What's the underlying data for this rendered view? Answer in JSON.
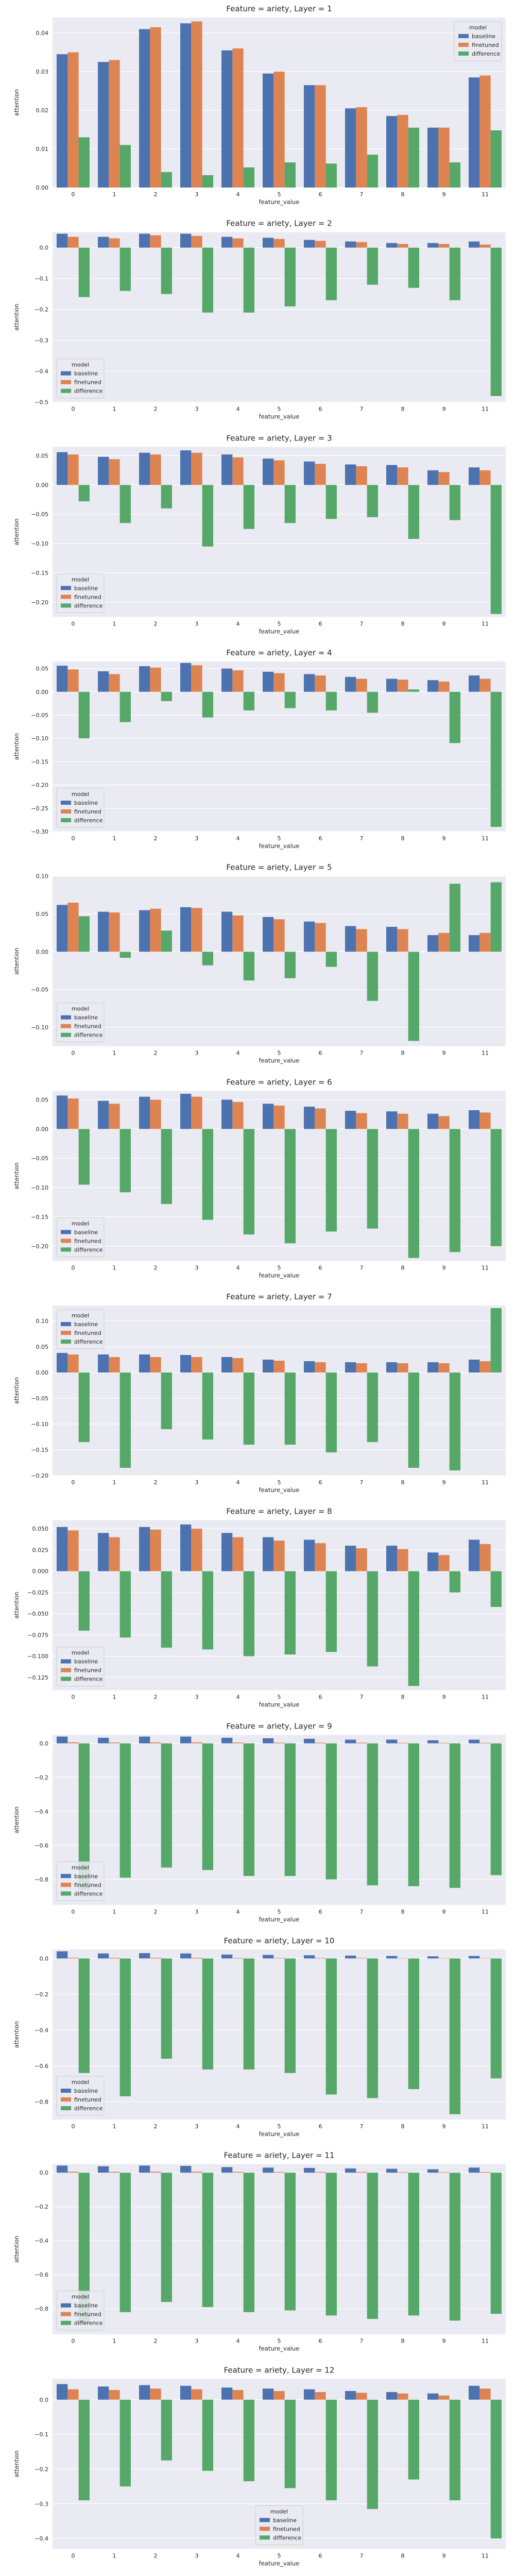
{
  "colors": {
    "baseline": "#4c72b0",
    "finetuned": "#dd8452",
    "difference": "#55a868",
    "plot_bg": "#eaeaf2",
    "grid": "#ffffff"
  },
  "chart_data": [
    {
      "type": "bar",
      "title": "Feature = ariety, Layer = 1",
      "xlabel": "feature_value",
      "ylabel": "attention",
      "categories": [
        "0",
        "1",
        "2",
        "3",
        "4",
        "5",
        "6",
        "7",
        "8",
        "9",
        "11"
      ],
      "ylim": [
        0,
        0.044
      ],
      "yticks": [
        "0.00",
        "0.01",
        "0.02",
        "0.03",
        "0.04"
      ],
      "legend": {
        "title": "model",
        "position": "top-right"
      },
      "series": [
        {
          "name": "baseline",
          "values": [
            0.0345,
            0.0325,
            0.041,
            0.0425,
            0.0355,
            0.0295,
            0.0265,
            0.0205,
            0.0185,
            0.0155,
            0.0285
          ]
        },
        {
          "name": "finetuned",
          "values": [
            0.035,
            0.033,
            0.0415,
            0.043,
            0.036,
            0.03,
            0.0265,
            0.0208,
            0.0188,
            0.0155,
            0.029
          ]
        },
        {
          "name": "difference",
          "values": [
            0.013,
            0.011,
            0.004,
            0.0032,
            0.0052,
            0.0065,
            0.0062,
            0.0085,
            0.0155,
            0.0065,
            0.0148
          ]
        }
      ]
    },
    {
      "type": "bar",
      "title": "Feature = ariety, Layer = 2",
      "xlabel": "feature_value",
      "ylabel": "attention",
      "categories": [
        "0",
        "1",
        "2",
        "3",
        "4",
        "5",
        "6",
        "7",
        "8",
        "9",
        "11"
      ],
      "ylim": [
        -0.5,
        0.05
      ],
      "yticks": [
        "−0.5",
        "−0.4",
        "−0.3",
        "−0.2",
        "−0.1",
        "0.0"
      ],
      "legend": {
        "title": "model",
        "position": "bottom-left"
      },
      "series": [
        {
          "name": "baseline",
          "values": [
            0.045,
            0.035,
            0.045,
            0.045,
            0.035,
            0.032,
            0.025,
            0.02,
            0.015,
            0.015,
            0.02
          ]
        },
        {
          "name": "finetuned",
          "values": [
            0.035,
            0.03,
            0.04,
            0.038,
            0.03,
            0.028,
            0.022,
            0.018,
            0.012,
            0.012,
            0.01
          ]
        },
        {
          "name": "difference",
          "values": [
            -0.16,
            -0.14,
            -0.15,
            -0.21,
            -0.21,
            -0.19,
            -0.17,
            -0.12,
            -0.13,
            -0.17,
            -0.48
          ]
        }
      ]
    },
    {
      "type": "bar",
      "title": "Feature = ariety, Layer = 3",
      "xlabel": "feature_value",
      "ylabel": "attention",
      "categories": [
        "0",
        "1",
        "2",
        "3",
        "4",
        "5",
        "6",
        "7",
        "8",
        "9",
        "11"
      ],
      "ylim": [
        -0.225,
        0.065
      ],
      "yticks": [
        "−0.20",
        "−0.15",
        "−0.10",
        "−0.05",
        "0.00",
        "0.05"
      ],
      "legend": {
        "title": "model",
        "position": "bottom-left"
      },
      "series": [
        {
          "name": "baseline",
          "values": [
            0.056,
            0.048,
            0.055,
            0.059,
            0.052,
            0.045,
            0.04,
            0.035,
            0.034,
            0.025,
            0.03
          ]
        },
        {
          "name": "finetuned",
          "values": [
            0.052,
            0.044,
            0.052,
            0.055,
            0.047,
            0.042,
            0.036,
            0.032,
            0.03,
            0.022,
            0.025
          ]
        },
        {
          "name": "difference",
          "values": [
            -0.028,
            -0.065,
            -0.04,
            -0.105,
            -0.075,
            -0.065,
            -0.058,
            -0.055,
            -0.092,
            -0.06,
            -0.22
          ]
        }
      ]
    },
    {
      "type": "bar",
      "title": "Feature = ariety, Layer = 4",
      "xlabel": "feature_value",
      "ylabel": "attention",
      "categories": [
        "0",
        "1",
        "2",
        "3",
        "4",
        "5",
        "6",
        "7",
        "8",
        "9",
        "11"
      ],
      "ylim": [
        -0.3,
        0.065
      ],
      "yticks": [
        "−0.30",
        "−0.25",
        "−0.20",
        "−0.15",
        "−0.10",
        "−0.05",
        "0.00",
        "0.05"
      ],
      "legend": {
        "title": "model",
        "position": "bottom-left"
      },
      "series": [
        {
          "name": "baseline",
          "values": [
            0.056,
            0.044,
            0.055,
            0.062,
            0.05,
            0.043,
            0.038,
            0.032,
            0.028,
            0.025,
            0.035
          ]
        },
        {
          "name": "finetuned",
          "values": [
            0.048,
            0.038,
            0.052,
            0.057,
            0.046,
            0.04,
            0.035,
            0.028,
            0.026,
            0.022,
            0.028
          ]
        },
        {
          "name": "difference",
          "values": [
            -0.1,
            -0.065,
            -0.02,
            -0.055,
            -0.04,
            -0.035,
            -0.04,
            -0.045,
            0.005,
            -0.11,
            -0.29
          ]
        }
      ]
    },
    {
      "type": "bar",
      "title": "Feature = ariety, Layer = 5",
      "xlabel": "feature_value",
      "ylabel": "attention",
      "categories": [
        "0",
        "1",
        "2",
        "3",
        "4",
        "5",
        "6",
        "7",
        "8",
        "9",
        "11"
      ],
      "ylim": [
        -0.125,
        0.1
      ],
      "yticks": [
        "−0.10",
        "−0.05",
        "0.00",
        "0.05",
        "0.10"
      ],
      "legend": {
        "title": "model",
        "position": "bottom-left"
      },
      "series": [
        {
          "name": "baseline",
          "values": [
            0.062,
            0.053,
            0.055,
            0.059,
            0.053,
            0.046,
            0.04,
            0.034,
            0.033,
            0.022,
            0.022
          ]
        },
        {
          "name": "finetuned",
          "values": [
            0.065,
            0.052,
            0.057,
            0.058,
            0.048,
            0.043,
            0.038,
            0.03,
            0.03,
            0.025,
            0.025
          ]
        },
        {
          "name": "difference",
          "values": [
            0.047,
            -0.008,
            0.028,
            -0.018,
            -0.038,
            -0.035,
            -0.02,
            -0.065,
            -0.118,
            0.09,
            0.092
          ]
        }
      ]
    },
    {
      "type": "bar",
      "title": "Feature = ariety, Layer = 6",
      "xlabel": "feature_value",
      "ylabel": "attention",
      "categories": [
        "0",
        "1",
        "2",
        "3",
        "4",
        "5",
        "6",
        "7",
        "8",
        "9",
        "11"
      ],
      "ylim": [
        -0.225,
        0.065
      ],
      "yticks": [
        "−0.20",
        "−0.15",
        "−0.10",
        "−0.05",
        "0.00",
        "0.05"
      ],
      "legend": {
        "title": "model",
        "position": "bottom-left"
      },
      "series": [
        {
          "name": "baseline",
          "values": [
            0.057,
            0.048,
            0.055,
            0.06,
            0.05,
            0.043,
            0.038,
            0.031,
            0.03,
            0.026,
            0.032
          ]
        },
        {
          "name": "finetuned",
          "values": [
            0.052,
            0.043,
            0.05,
            0.055,
            0.046,
            0.04,
            0.035,
            0.027,
            0.026,
            0.022,
            0.028
          ]
        },
        {
          "name": "difference",
          "values": [
            -0.095,
            -0.108,
            -0.128,
            -0.155,
            -0.18,
            -0.195,
            -0.175,
            -0.17,
            -0.22,
            -0.21,
            -0.2
          ]
        }
      ]
    },
    {
      "type": "bar",
      "title": "Feature = ariety, Layer = 7",
      "xlabel": "feature_value",
      "ylabel": "attention",
      "categories": [
        "0",
        "1",
        "2",
        "3",
        "4",
        "5",
        "6",
        "7",
        "8",
        "9",
        "11"
      ],
      "ylim": [
        -0.2,
        0.13
      ],
      "yticks": [
        "−0.20",
        "−0.15",
        "−0.10",
        "−0.05",
        "0.00",
        "0.05",
        "0.10"
      ],
      "legend": {
        "title": "model",
        "position": "top-left"
      },
      "series": [
        {
          "name": "baseline",
          "values": [
            0.038,
            0.035,
            0.035,
            0.034,
            0.03,
            0.025,
            0.022,
            0.02,
            0.02,
            0.02,
            0.025
          ]
        },
        {
          "name": "finetuned",
          "values": [
            0.035,
            0.03,
            0.03,
            0.03,
            0.028,
            0.023,
            0.02,
            0.018,
            0.018,
            0.018,
            0.022
          ]
        },
        {
          "name": "difference",
          "values": [
            -0.135,
            -0.185,
            -0.11,
            -0.13,
            -0.14,
            -0.14,
            -0.155,
            -0.135,
            -0.185,
            -0.19,
            0.125
          ]
        }
      ]
    },
    {
      "type": "bar",
      "title": "Feature = ariety, Layer = 8",
      "xlabel": "feature_value",
      "ylabel": "attention",
      "categories": [
        "0",
        "1",
        "2",
        "3",
        "4",
        "5",
        "6",
        "7",
        "8",
        "9",
        "11"
      ],
      "ylim": [
        -0.14,
        0.06
      ],
      "yticks": [
        "−0.125",
        "−0.100",
        "−0.075",
        "−0.050",
        "−0.025",
        "0.000",
        "0.025",
        "0.050"
      ],
      "legend": {
        "title": "model",
        "position": "bottom-left"
      },
      "series": [
        {
          "name": "baseline",
          "values": [
            0.052,
            0.045,
            0.052,
            0.055,
            0.045,
            0.04,
            0.037,
            0.03,
            0.03,
            0.022,
            0.037
          ]
        },
        {
          "name": "finetuned",
          "values": [
            0.048,
            0.04,
            0.049,
            0.05,
            0.04,
            0.036,
            0.033,
            0.027,
            0.026,
            0.019,
            0.032
          ]
        },
        {
          "name": "difference",
          "values": [
            -0.07,
            -0.078,
            -0.09,
            -0.092,
            -0.1,
            -0.098,
            -0.095,
            -0.112,
            -0.135,
            -0.025,
            -0.042
          ]
        }
      ]
    },
    {
      "type": "bar",
      "title": "Feature = ariety, Layer = 9",
      "xlabel": "feature_value",
      "ylabel": "attention",
      "categories": [
        "0",
        "1",
        "2",
        "3",
        "4",
        "5",
        "6",
        "7",
        "8",
        "9",
        "11"
      ],
      "ylim": [
        -0.95,
        0.05
      ],
      "yticks": [
        "−0.8",
        "−0.6",
        "−0.4",
        "−0.2",
        "0.0"
      ],
      "legend": {
        "title": "model",
        "position": "bottom-left"
      },
      "series": [
        {
          "name": "baseline",
          "values": [
            0.04,
            0.033,
            0.04,
            0.04,
            0.033,
            0.03,
            0.027,
            0.022,
            0.022,
            0.018,
            0.022
          ]
        },
        {
          "name": "finetuned",
          "values": [
            0.006,
            0.005,
            0.006,
            0.006,
            0.005,
            0.004,
            0.004,
            0.004,
            0.003,
            0.003,
            0.003
          ]
        },
        {
          "name": "difference",
          "values": [
            -0.86,
            -0.79,
            -0.73,
            -0.745,
            -0.78,
            -0.78,
            -0.8,
            -0.835,
            -0.84,
            -0.85,
            -0.775
          ]
        }
      ]
    },
    {
      "type": "bar",
      "title": "Feature = ariety, Layer = 10",
      "xlabel": "feature_value",
      "ylabel": "attention",
      "categories": [
        "0",
        "1",
        "2",
        "3",
        "4",
        "5",
        "6",
        "7",
        "8",
        "9",
        "11"
      ],
      "ylim": [
        -0.9,
        0.05
      ],
      "yticks": [
        "−0.8",
        "−0.6",
        "−0.4",
        "−0.2",
        "0.0"
      ],
      "legend": {
        "title": "model",
        "position": "bottom-left"
      },
      "series": [
        {
          "name": "baseline",
          "values": [
            0.04,
            0.028,
            0.03,
            0.028,
            0.022,
            0.02,
            0.018,
            0.016,
            0.014,
            0.012,
            0.014
          ]
        },
        {
          "name": "finetuned",
          "values": [
            0.004,
            0.004,
            0.004,
            0.004,
            0.003,
            0.003,
            0.003,
            0.003,
            0.002,
            0.002,
            0.002
          ]
        },
        {
          "name": "difference",
          "values": [
            -0.64,
            -0.77,
            -0.56,
            -0.62,
            -0.62,
            -0.64,
            -0.76,
            -0.78,
            -0.73,
            -0.87,
            -0.67
          ]
        }
      ]
    },
    {
      "type": "bar",
      "title": "Feature = ariety, Layer = 11",
      "xlabel": "feature_value",
      "ylabel": "attention",
      "categories": [
        "0",
        "1",
        "2",
        "3",
        "4",
        "5",
        "6",
        "7",
        "8",
        "9",
        "11"
      ],
      "ylim": [
        -0.95,
        0.05
      ],
      "yticks": [
        "−0.8",
        "−0.6",
        "−0.4",
        "−0.2",
        "0.0"
      ],
      "legend": {
        "title": "model",
        "position": "bottom-left"
      },
      "series": [
        {
          "name": "baseline",
          "values": [
            0.042,
            0.038,
            0.042,
            0.04,
            0.033,
            0.03,
            0.028,
            0.025,
            0.023,
            0.02,
            0.03
          ]
        },
        {
          "name": "finetuned",
          "values": [
            0.006,
            0.005,
            0.006,
            0.006,
            0.005,
            0.004,
            0.004,
            0.004,
            0.003,
            0.003,
            0.004
          ]
        },
        {
          "name": "difference",
          "values": [
            -0.89,
            -0.82,
            -0.76,
            -0.79,
            -0.82,
            -0.81,
            -0.84,
            -0.86,
            -0.84,
            -0.87,
            -0.83
          ]
        }
      ]
    },
    {
      "type": "bar",
      "title": "Feature = ariety, Layer = 12",
      "xlabel": "feature_value",
      "ylabel": "attention",
      "categories": [
        "0",
        "1",
        "2",
        "3",
        "4",
        "5",
        "6",
        "7",
        "8",
        "9",
        "11"
      ],
      "ylim": [
        -0.43,
        0.06
      ],
      "yticks": [
        "−0.4",
        "−0.3",
        "−0.2",
        "−0.1",
        "0.0"
      ],
      "legend": {
        "title": "model",
        "position": "bottom-center"
      },
      "series": [
        {
          "name": "baseline",
          "values": [
            0.045,
            0.038,
            0.042,
            0.04,
            0.035,
            0.032,
            0.03,
            0.025,
            0.022,
            0.018,
            0.04
          ]
        },
        {
          "name": "finetuned",
          "values": [
            0.03,
            0.028,
            0.032,
            0.03,
            0.028,
            0.025,
            0.022,
            0.02,
            0.018,
            0.012,
            0.032
          ]
        },
        {
          "name": "difference",
          "values": [
            -0.29,
            -0.25,
            -0.175,
            -0.205,
            -0.235,
            -0.255,
            -0.29,
            -0.315,
            -0.23,
            -0.29,
            -0.4
          ]
        }
      ]
    }
  ]
}
